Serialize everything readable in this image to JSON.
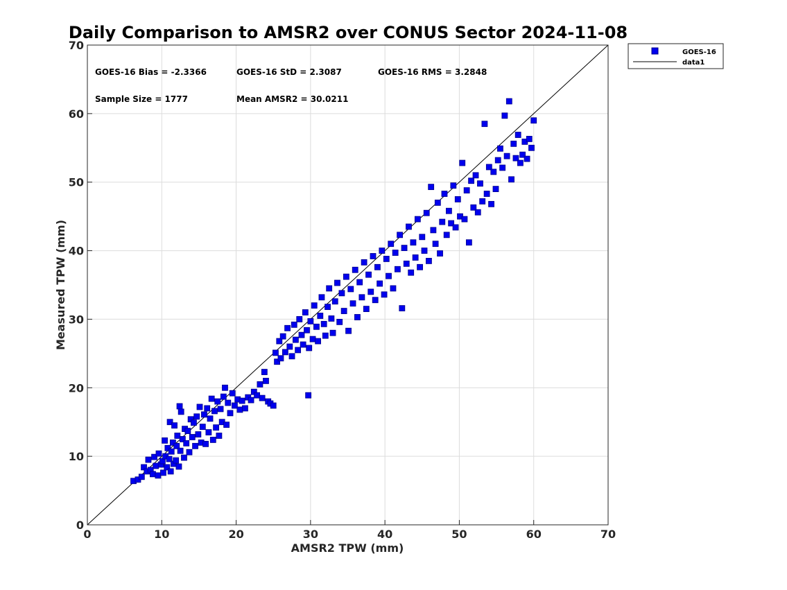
{
  "chart_data": {
    "type": "scatter",
    "title": "Daily Comparison to AMSR2 over CONUS Sector 2024-11-08",
    "xlabel": "AMSR2 TPW (mm)",
    "ylabel": "Measured TPW (mm)",
    "xlim": [
      0,
      70
    ],
    "ylim": [
      0,
      70
    ],
    "xticks": [
      "0",
      "10",
      "20",
      "30",
      "40",
      "50",
      "60",
      "70"
    ],
    "yticks": [
      "0",
      "10",
      "20",
      "30",
      "40",
      "50",
      "60",
      "70"
    ],
    "grid": true,
    "legend_position": "outside-top-right",
    "stats": [
      "GOES-16 Bias = -2.3366",
      "GOES-16 StD = 2.3087",
      "GOES-16 RMS = 3.2848",
      "Sample Size = 1777",
      "Mean AMSR2 = 30.0211"
    ],
    "colors": {
      "marker": "#0000ee",
      "marker_edge": "#00008b",
      "line": "#000000"
    },
    "series": [
      {
        "name": "GOES-16",
        "marker": "square",
        "points": [
          [
            6.2,
            6.4
          ],
          [
            6.8,
            6.6
          ],
          [
            7.3,
            7.0
          ],
          [
            7.6,
            8.4
          ],
          [
            8.0,
            7.8
          ],
          [
            8.2,
            9.5
          ],
          [
            8.5,
            8.0
          ],
          [
            8.8,
            7.4
          ],
          [
            9.0,
            9.9
          ],
          [
            9.2,
            8.6
          ],
          [
            9.5,
            7.2
          ],
          [
            9.6,
            10.4
          ],
          [
            9.9,
            8.8
          ],
          [
            10.1,
            9.3
          ],
          [
            10.2,
            7.6
          ],
          [
            10.4,
            12.3
          ],
          [
            10.5,
            10.0
          ],
          [
            10.7,
            8.4
          ],
          [
            10.8,
            11.2
          ],
          [
            11.0,
            9.6
          ],
          [
            11.1,
            15.0
          ],
          [
            11.2,
            7.8
          ],
          [
            11.3,
            10.7
          ],
          [
            11.5,
            12.0
          ],
          [
            11.6,
            8.9
          ],
          [
            11.7,
            14.5
          ],
          [
            11.9,
            9.4
          ],
          [
            12.0,
            11.5
          ],
          [
            12.1,
            13.0
          ],
          [
            12.3,
            8.5
          ],
          [
            12.4,
            17.3
          ],
          [
            12.5,
            10.8
          ],
          [
            12.6,
            16.5
          ],
          [
            12.8,
            12.5
          ],
          [
            13.0,
            9.8
          ],
          [
            13.1,
            14.0
          ],
          [
            13.3,
            11.9
          ],
          [
            13.5,
            13.7
          ],
          [
            13.7,
            10.6
          ],
          [
            13.9,
            15.4
          ],
          [
            14.1,
            12.8
          ],
          [
            14.3,
            14.9
          ],
          [
            14.5,
            11.5
          ],
          [
            14.7,
            15.8
          ],
          [
            14.9,
            13.2
          ],
          [
            15.1,
            17.2
          ],
          [
            15.3,
            12.0
          ],
          [
            15.5,
            14.3
          ],
          [
            15.7,
            16.1
          ],
          [
            15.9,
            11.8
          ],
          [
            16.1,
            17.0
          ],
          [
            16.3,
            13.5
          ],
          [
            16.5,
            15.5
          ],
          [
            16.7,
            18.4
          ],
          [
            16.9,
            12.4
          ],
          [
            17.1,
            16.6
          ],
          [
            17.3,
            14.2
          ],
          [
            17.5,
            18.0
          ],
          [
            17.7,
            13.0
          ],
          [
            17.9,
            16.9
          ],
          [
            18.1,
            15.0
          ],
          [
            18.3,
            18.7
          ],
          [
            18.5,
            20.0
          ],
          [
            18.7,
            14.6
          ],
          [
            18.9,
            17.8
          ],
          [
            19.2,
            16.3
          ],
          [
            19.5,
            19.2
          ],
          [
            19.8,
            17.4
          ],
          [
            20.2,
            18.3
          ],
          [
            20.5,
            16.8
          ],
          [
            20.8,
            18.1
          ],
          [
            21.2,
            17.0
          ],
          [
            21.6,
            18.6
          ],
          [
            22.0,
            18.2
          ],
          [
            22.4,
            19.4
          ],
          [
            22.8,
            18.9
          ],
          [
            23.2,
            20.5
          ],
          [
            23.5,
            18.5
          ],
          [
            23.8,
            22.3
          ],
          [
            24.0,
            21.0
          ],
          [
            24.3,
            18.0
          ],
          [
            24.6,
            17.7
          ],
          [
            25.0,
            17.4
          ],
          [
            25.3,
            25.1
          ],
          [
            25.5,
            23.8
          ],
          [
            25.8,
            26.8
          ],
          [
            26.0,
            24.3
          ],
          [
            26.3,
            27.5
          ],
          [
            26.6,
            25.2
          ],
          [
            26.9,
            28.7
          ],
          [
            27.2,
            26.0
          ],
          [
            27.5,
            24.6
          ],
          [
            27.8,
            29.2
          ],
          [
            28.0,
            27.0
          ],
          [
            28.3,
            25.5
          ],
          [
            28.5,
            30.0
          ],
          [
            28.8,
            27.7
          ],
          [
            29.0,
            26.3
          ],
          [
            29.3,
            31.0
          ],
          [
            29.5,
            28.4
          ],
          [
            29.7,
            18.9
          ],
          [
            29.8,
            25.8
          ],
          [
            30.0,
            29.7
          ],
          [
            30.3,
            27.1
          ],
          [
            30.5,
            32.0
          ],
          [
            30.8,
            28.9
          ],
          [
            31.0,
            26.8
          ],
          [
            31.3,
            30.5
          ],
          [
            31.5,
            33.2
          ],
          [
            31.8,
            29.3
          ],
          [
            32.0,
            27.6
          ],
          [
            32.3,
            31.8
          ],
          [
            32.5,
            34.5
          ],
          [
            32.8,
            30.1
          ],
          [
            33.0,
            28.0
          ],
          [
            33.3,
            32.6
          ],
          [
            33.6,
            35.3
          ],
          [
            33.9,
            29.6
          ],
          [
            34.2,
            33.8
          ],
          [
            34.5,
            31.2
          ],
          [
            34.8,
            36.2
          ],
          [
            35.1,
            28.3
          ],
          [
            35.4,
            34.4
          ],
          [
            35.7,
            32.3
          ],
          [
            36.0,
            37.2
          ],
          [
            36.3,
            30.3
          ],
          [
            36.6,
            35.4
          ],
          [
            36.9,
            33.2
          ],
          [
            37.2,
            38.3
          ],
          [
            37.5,
            31.5
          ],
          [
            37.8,
            36.5
          ],
          [
            38.1,
            34.0
          ],
          [
            38.4,
            39.2
          ],
          [
            38.7,
            32.8
          ],
          [
            39.0,
            37.6
          ],
          [
            39.3,
            35.2
          ],
          [
            39.6,
            40.0
          ],
          [
            39.9,
            33.6
          ],
          [
            40.2,
            38.8
          ],
          [
            40.5,
            36.3
          ],
          [
            40.8,
            41.0
          ],
          [
            41.1,
            34.5
          ],
          [
            41.4,
            39.7
          ],
          [
            41.7,
            37.3
          ],
          [
            42.0,
            42.3
          ],
          [
            42.3,
            31.6
          ],
          [
            42.6,
            40.4
          ],
          [
            42.9,
            38.1
          ],
          [
            43.2,
            43.5
          ],
          [
            43.5,
            36.8
          ],
          [
            43.8,
            41.2
          ],
          [
            44.1,
            39.0
          ],
          [
            44.4,
            44.6
          ],
          [
            44.7,
            37.6
          ],
          [
            45.0,
            42.0
          ],
          [
            45.3,
            40.0
          ],
          [
            45.6,
            45.5
          ],
          [
            45.9,
            38.5
          ],
          [
            46.2,
            49.3
          ],
          [
            46.5,
            43.0
          ],
          [
            46.8,
            41.0
          ],
          [
            47.1,
            47.0
          ],
          [
            47.4,
            39.6
          ],
          [
            47.7,
            44.2
          ],
          [
            48.0,
            48.3
          ],
          [
            48.3,
            42.3
          ],
          [
            48.6,
            45.8
          ],
          [
            48.9,
            44.0
          ],
          [
            49.2,
            49.5
          ],
          [
            49.5,
            43.4
          ],
          [
            49.8,
            47.5
          ],
          [
            50.1,
            45.0
          ],
          [
            50.4,
            52.8
          ],
          [
            50.7,
            44.6
          ],
          [
            51.0,
            48.8
          ],
          [
            51.3,
            41.2
          ],
          [
            51.6,
            50.2
          ],
          [
            51.9,
            46.3
          ],
          [
            52.2,
            51.0
          ],
          [
            52.5,
            45.6
          ],
          [
            52.8,
            49.8
          ],
          [
            53.1,
            47.2
          ],
          [
            53.4,
            58.5
          ],
          [
            53.7,
            48.3
          ],
          [
            54.0,
            52.2
          ],
          [
            54.3,
            46.8
          ],
          [
            54.6,
            51.5
          ],
          [
            54.9,
            49.0
          ],
          [
            55.2,
            53.2
          ],
          [
            55.5,
            54.9
          ],
          [
            55.8,
            52.1
          ],
          [
            56.1,
            59.7
          ],
          [
            56.4,
            53.8
          ],
          [
            56.7,
            61.8
          ],
          [
            57.0,
            50.4
          ],
          [
            57.3,
            55.6
          ],
          [
            57.6,
            53.5
          ],
          [
            57.9,
            56.9
          ],
          [
            58.2,
            52.8
          ],
          [
            58.5,
            54.0
          ],
          [
            58.8,
            55.9
          ],
          [
            59.1,
            53.4
          ],
          [
            59.4,
            56.3
          ],
          [
            59.7,
            55.0
          ],
          [
            60.0,
            59.0
          ]
        ]
      },
      {
        "name": "data1",
        "type": "line",
        "points": [
          [
            0,
            0
          ],
          [
            70,
            70
          ]
        ]
      }
    ]
  }
}
